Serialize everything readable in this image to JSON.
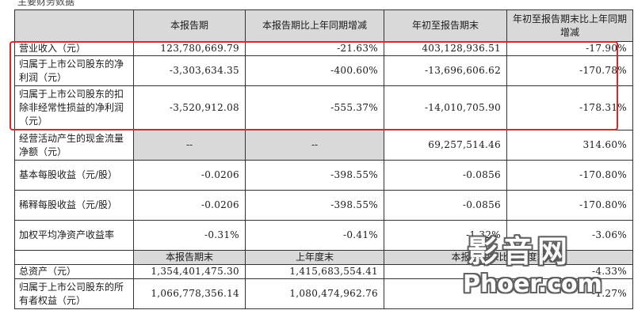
{
  "top_fragment": "主要财务数据",
  "header": {
    "blank": "",
    "col1": "本报告期",
    "col2": "本报告期比上年同期增减",
    "col3": "年初至报告期末",
    "col4": "年初至报告期末比上年同期增减"
  },
  "rows": [
    {
      "label": "营业收入（元）",
      "v1": "123,780,669.79",
      "v2": "-21.63%",
      "v3": "403,128,936.51",
      "v4": "-17.90%"
    },
    {
      "label": "归属于上市公司股东的净利润（元）",
      "v1": "-3,303,634.35",
      "v2": "-400.60%",
      "v3": "-13,696,606.62",
      "v4": "-170.78%"
    },
    {
      "label": "归属于上市公司股东的扣除非经常性损益的净利润（元）",
      "v1": "-3,520,912.08",
      "v2": "-555.37%",
      "v3": "-14,010,705.90",
      "v4": "-178.31%"
    },
    {
      "label": "经营活动产生的现金流量净额（元）",
      "v1": "--",
      "v2": "--",
      "v3": "69,257,514.46",
      "v4": "314.60%"
    },
    {
      "label": "基本每股收益（元/股）",
      "v1": "-0.0206",
      "v2": "-398.55%",
      "v3": "-0.0856",
      "v4": "-170.80%"
    },
    {
      "label": "稀释每股收益（元/股）",
      "v1": "-0.0206",
      "v2": "-398.55%",
      "v3": "-0.0856",
      "v4": "-170.80%"
    },
    {
      "label": "加权平均净资产收益率",
      "v1": "-0.31%",
      "v2": "-0.41%",
      "v3": "-1.32%",
      "v4": "-3.06%"
    }
  ],
  "header2": {
    "blank": "",
    "col1": "本报告期末",
    "col2": "上年度末",
    "col3": "本报告期末比上年度末增减"
  },
  "rows2": [
    {
      "label": "总资产（元）",
      "v1": "1,354,401,475.30",
      "v2": "1,415,683,554.41",
      "v3": "-4.33%"
    },
    {
      "label": "归属于上市公司股东的所有者权益（元）",
      "v1": "1,066,778,356.14",
      "v2": "1,080,474,962.76",
      "v3": "-1.27%"
    }
  ],
  "watermark": {
    "cn": "影音网",
    "en": "Phoer.com"
  },
  "colors": {
    "header_bg": "#d9d9d9",
    "highlight": "#e02424",
    "border": "#333333"
  }
}
